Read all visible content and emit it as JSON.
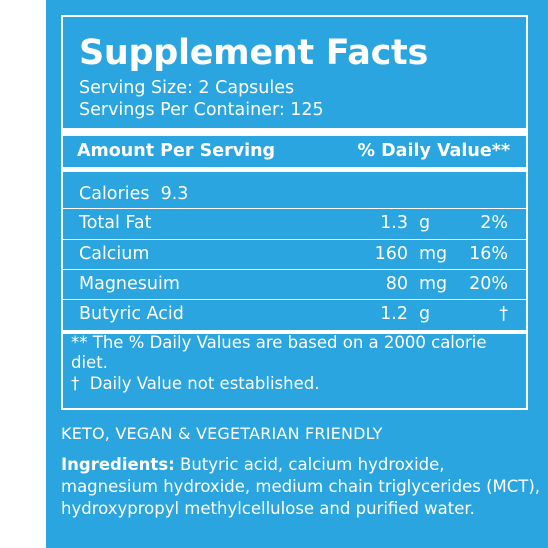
{
  "panel": {
    "title": "Supplement Facts",
    "serving_size": "Serving Size: 2 Capsules",
    "servings_per_container": "Servings Per Container: 125",
    "header_amount": "Amount Per Serving",
    "header_dv": "% Daily Value**",
    "calories": "Calories  9.3",
    "rows": [
      {
        "name": "Total Fat",
        "amount": "1.3",
        "unit": "g",
        "dv": "2%"
      },
      {
        "name": "Calcium",
        "amount": "160",
        "unit": "mg",
        "dv": "16%"
      },
      {
        "name": "Magnesuim",
        "amount": "80",
        "unit": "mg",
        "dv": "20%"
      },
      {
        "name": "Butyric Acid",
        "amount": "1.2",
        "unit": "g",
        "dv": "†"
      }
    ],
    "footnote_dv": "** The % Daily Values are based on a 2000 calorie diet.",
    "footnote_dagger": "†  Daily Value not established."
  },
  "friendly": "KETO, VEGAN & VEGETARIAN FRIENDLY",
  "ingredients": {
    "label": "Ingredients:",
    "text": " Butyric acid, calcium hydroxide, magnesium hydroxide, medium chain triglycerides (MCT), hydroxypropyl methylcellulose and purified water."
  },
  "colors": {
    "background": "#2aa5df",
    "text": "#ffffff"
  }
}
